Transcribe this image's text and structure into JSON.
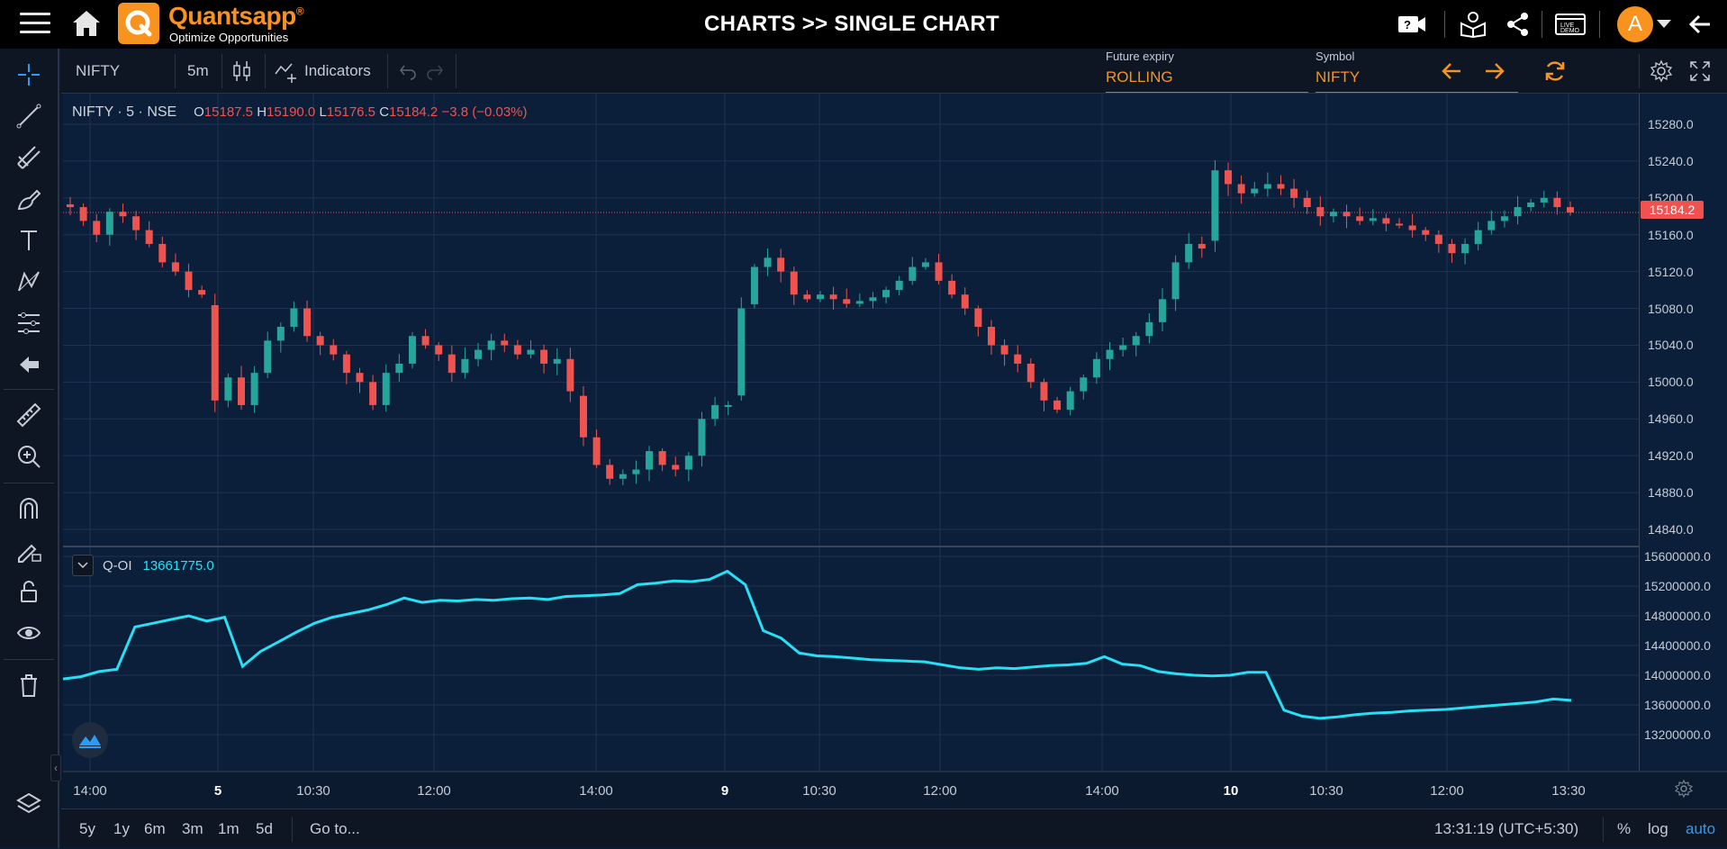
{
  "header": {
    "brand": "Quantsapp",
    "brand_mark": "®",
    "tagline": "Optimize Opportunities",
    "title": "CHARTS >> SINGLE CHART",
    "avatar_letter": "A",
    "live_demo": "LIVE DEMO"
  },
  "toolbar": {
    "symbol_search": "NIFTY",
    "interval": "5m",
    "indicators_label": "Indicators",
    "future_expiry_label": "Future expiry",
    "future_expiry_value": "ROLLING",
    "symbol_label": "Symbol",
    "symbol_value": "NIFTY"
  },
  "legend": {
    "symbol": "NIFTY",
    "interval": "5",
    "exchange": "NSE",
    "open_label": "O",
    "open": "15187.5",
    "high_label": "H",
    "high": "15190.0",
    "low_label": "L",
    "low": "15176.5",
    "close_label": "C",
    "close": "15184.2",
    "change": "−3.8 (−0.03%)"
  },
  "indicator": {
    "name": "Q-OI",
    "value": "13661775.0"
  },
  "price_tag": "15184.2",
  "price_axis": [
    "15280.0",
    "15240.0",
    "15200.0",
    "15160.0",
    "15120.0",
    "15080.0",
    "15040.0",
    "15000.0",
    "14960.0",
    "14920.0",
    "14880.0",
    "14840.0"
  ],
  "oi_axis": [
    "15600000.0",
    "15200000.0",
    "14800000.0",
    "14400000.0",
    "14000000.0",
    "13600000.0",
    "13200000.0"
  ],
  "time_axis": [
    {
      "label": "14:00",
      "bold": false
    },
    {
      "label": "5",
      "bold": true
    },
    {
      "label": "10:30",
      "bold": false
    },
    {
      "label": "12:00",
      "bold": false
    },
    {
      "label": "14:00",
      "bold": false
    },
    {
      "label": "9",
      "bold": true
    },
    {
      "label": "10:30",
      "bold": false
    },
    {
      "label": "12:00",
      "bold": false
    },
    {
      "label": "14:00",
      "bold": false
    },
    {
      "label": "10",
      "bold": true
    },
    {
      "label": "10:30",
      "bold": false
    },
    {
      "label": "12:00",
      "bold": false
    },
    {
      "label": "13:30",
      "bold": false
    }
  ],
  "bottombar": {
    "ranges": [
      "5y",
      "1y",
      "6m",
      "3m",
      "1m",
      "5d"
    ],
    "goto": "Go to...",
    "clock": "13:31:19 (UTC+5:30)",
    "percent": "%",
    "log": "log",
    "auto": "auto"
  },
  "colors": {
    "up": "#26a69a",
    "down": "#ef5350",
    "oi_line": "#26e0f5",
    "accent": "#f7931e",
    "background": "#0b1f3a"
  },
  "chart_data": [
    {
      "type": "candlestick",
      "title": "NIFTY · 5 · NSE",
      "xlabel": "",
      "ylabel": "",
      "ylim": [
        14820,
        15300
      ],
      "x": [
        "14:00",
        "5",
        "10:30",
        "12:00",
        "14:00",
        "9",
        "10:30",
        "12:00",
        "14:00",
        "10",
        "10:30",
        "12:00",
        "13:30"
      ],
      "close_path": [
        15190,
        15175,
        15160,
        15185,
        15180,
        15165,
        15150,
        15130,
        15120,
        15100,
        15095,
        14980,
        15005,
        14975,
        15010,
        15045,
        15060,
        15080,
        15050,
        15040,
        15030,
        15010,
        15000,
        14975,
        15010,
        15020,
        15050,
        15040,
        15030,
        15010,
        15025,
        15035,
        15045,
        15040,
        15030,
        15035,
        15020,
        15025,
        14990,
        14940,
        14910,
        14895,
        14900,
        14905,
        14925,
        14910,
        14905,
        14920,
        14960,
        14975,
        14975,
        15080,
        15125,
        15135,
        15120,
        15095,
        15090,
        15095,
        15090,
        15085,
        15088,
        15092,
        15100,
        15110,
        15125,
        15130,
        15110,
        15095,
        15080,
        15060,
        15040,
        15030,
        15020,
        15000,
        14980,
        14970,
        14990,
        15005,
        15025,
        15035,
        15040,
        15050,
        15065,
        15090,
        15130,
        15150,
        15145,
        15230,
        15215,
        15205,
        15210,
        15215,
        15210,
        15200,
        15190,
        15180,
        15185,
        15180,
        15175,
        15178,
        15172,
        15170,
        15165,
        15160,
        15150,
        15140,
        15150,
        15165,
        15175,
        15180,
        15190,
        15195,
        15200,
        15190,
        15184.2
      ]
    },
    {
      "type": "line",
      "title": "Q-OI",
      "xlabel": "",
      "ylabel": "",
      "ylim": [
        13200000,
        15650000
      ],
      "series": [
        {
          "name": "Q-OI",
          "values": [
            13950000,
            13980000,
            14050000,
            14080000,
            14650000,
            14700000,
            14750000,
            14800000,
            14730000,
            14780000,
            14120000,
            14320000,
            14450000,
            14580000,
            14700000,
            14780000,
            14830000,
            14880000,
            14950000,
            15040000,
            14980000,
            15010000,
            15000000,
            15020000,
            15010000,
            15030000,
            15040000,
            15020000,
            15060000,
            15070000,
            15080000,
            15100000,
            15220000,
            15240000,
            15270000,
            15260000,
            15290000,
            15400000,
            15220000,
            14600000,
            14500000,
            14300000,
            14260000,
            14250000,
            14230000,
            14210000,
            14200000,
            14190000,
            14180000,
            14140000,
            14100000,
            14080000,
            14100000,
            14090000,
            14110000,
            14130000,
            14140000,
            14160000,
            14250000,
            14150000,
            14130000,
            14050000,
            14020000,
            14000000,
            13990000,
            14000000,
            14040000,
            14040000,
            13530000,
            13450000,
            13420000,
            13440000,
            13470000,
            13490000,
            13500000,
            13520000,
            13530000,
            13540000,
            13560000,
            13580000,
            13600000,
            13620000,
            13640000,
            13680000,
            13661775
          ]
        }
      ]
    }
  ]
}
